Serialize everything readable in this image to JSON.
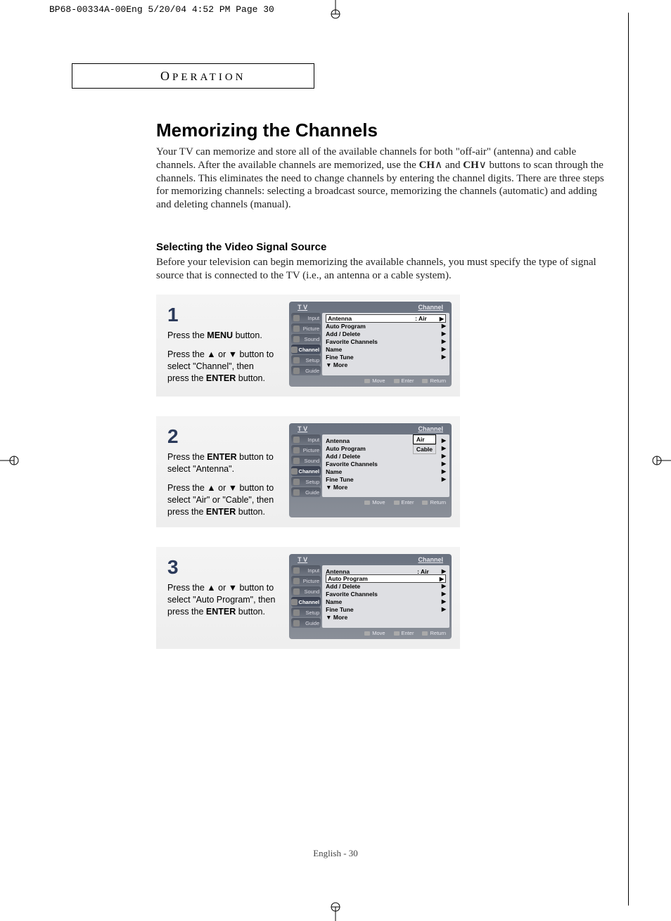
{
  "print_header": "BP68-00334A-00Eng  5/20/04  4:52 PM  Page 30",
  "section_label": "OPERATION",
  "title": "Memorizing the Channels",
  "intro_html": "Your TV can memorize and store all of the available channels for both \"off-air\" (antenna) and cable channels. After the available channels are memorized, use the <b>CH</b>∧ and <b>CH</b>∨ buttons to scan through the channels. This eliminates the need to change channels by entering the channel digits. There are three steps for memorizing channels: selecting a broadcast source, memorizing the channels (automatic) and adding and deleting channels (manual).",
  "subhead": "Selecting the Video Signal Source",
  "sub_intro": "Before your television can begin memorizing the available channels, you must specify the type of signal source that is connected to the TV (i.e., an antenna or a cable system).",
  "steps": [
    {
      "num": "1",
      "lines": [
        "Press the <b>MENU</b> button.",
        "",
        "Press the ▲ or ▼ button to select \"Channel\", then press the <b>ENTER</b> button."
      ],
      "menu": {
        "header_left": "T V",
        "header_right": "Channel",
        "highlight_index": 0,
        "antenna_value": ":   Air",
        "dropdown": null
      }
    },
    {
      "num": "2",
      "lines": [
        "Press the <b>ENTER</b> button to select \"Antenna\".",
        "",
        "Press the ▲ or ▼ button to select \"Air\" or \"Cable\", then press the <b>ENTER</b> button."
      ],
      "menu": {
        "header_left": "T V",
        "header_right": "Channel",
        "highlight_index": -1,
        "antenna_value": ":",
        "dropdown": {
          "options": [
            "Air",
            "Cable"
          ],
          "selected": 0
        }
      }
    },
    {
      "num": "3",
      "lines": [
        "Press the ▲ or ▼ button to select \"Auto Program\", then press the <b>ENTER</b> button."
      ],
      "menu": {
        "header_left": "T V",
        "header_right": "Channel",
        "highlight_index": 1,
        "antenna_value": ":   Air",
        "dropdown": null
      }
    }
  ],
  "menu_tabs": [
    "Input",
    "Picture",
    "Sound",
    "Channel",
    "Setup",
    "Guide"
  ],
  "menu_tab_selected": 3,
  "menu_items": [
    "Antenna",
    "Auto Program",
    "Add / Delete",
    "Favorite Channels",
    "Name",
    "Fine Tune",
    "▼ More"
  ],
  "menu_footer": [
    "Move",
    "Enter",
    "Return"
  ],
  "page_number": "English - 30"
}
